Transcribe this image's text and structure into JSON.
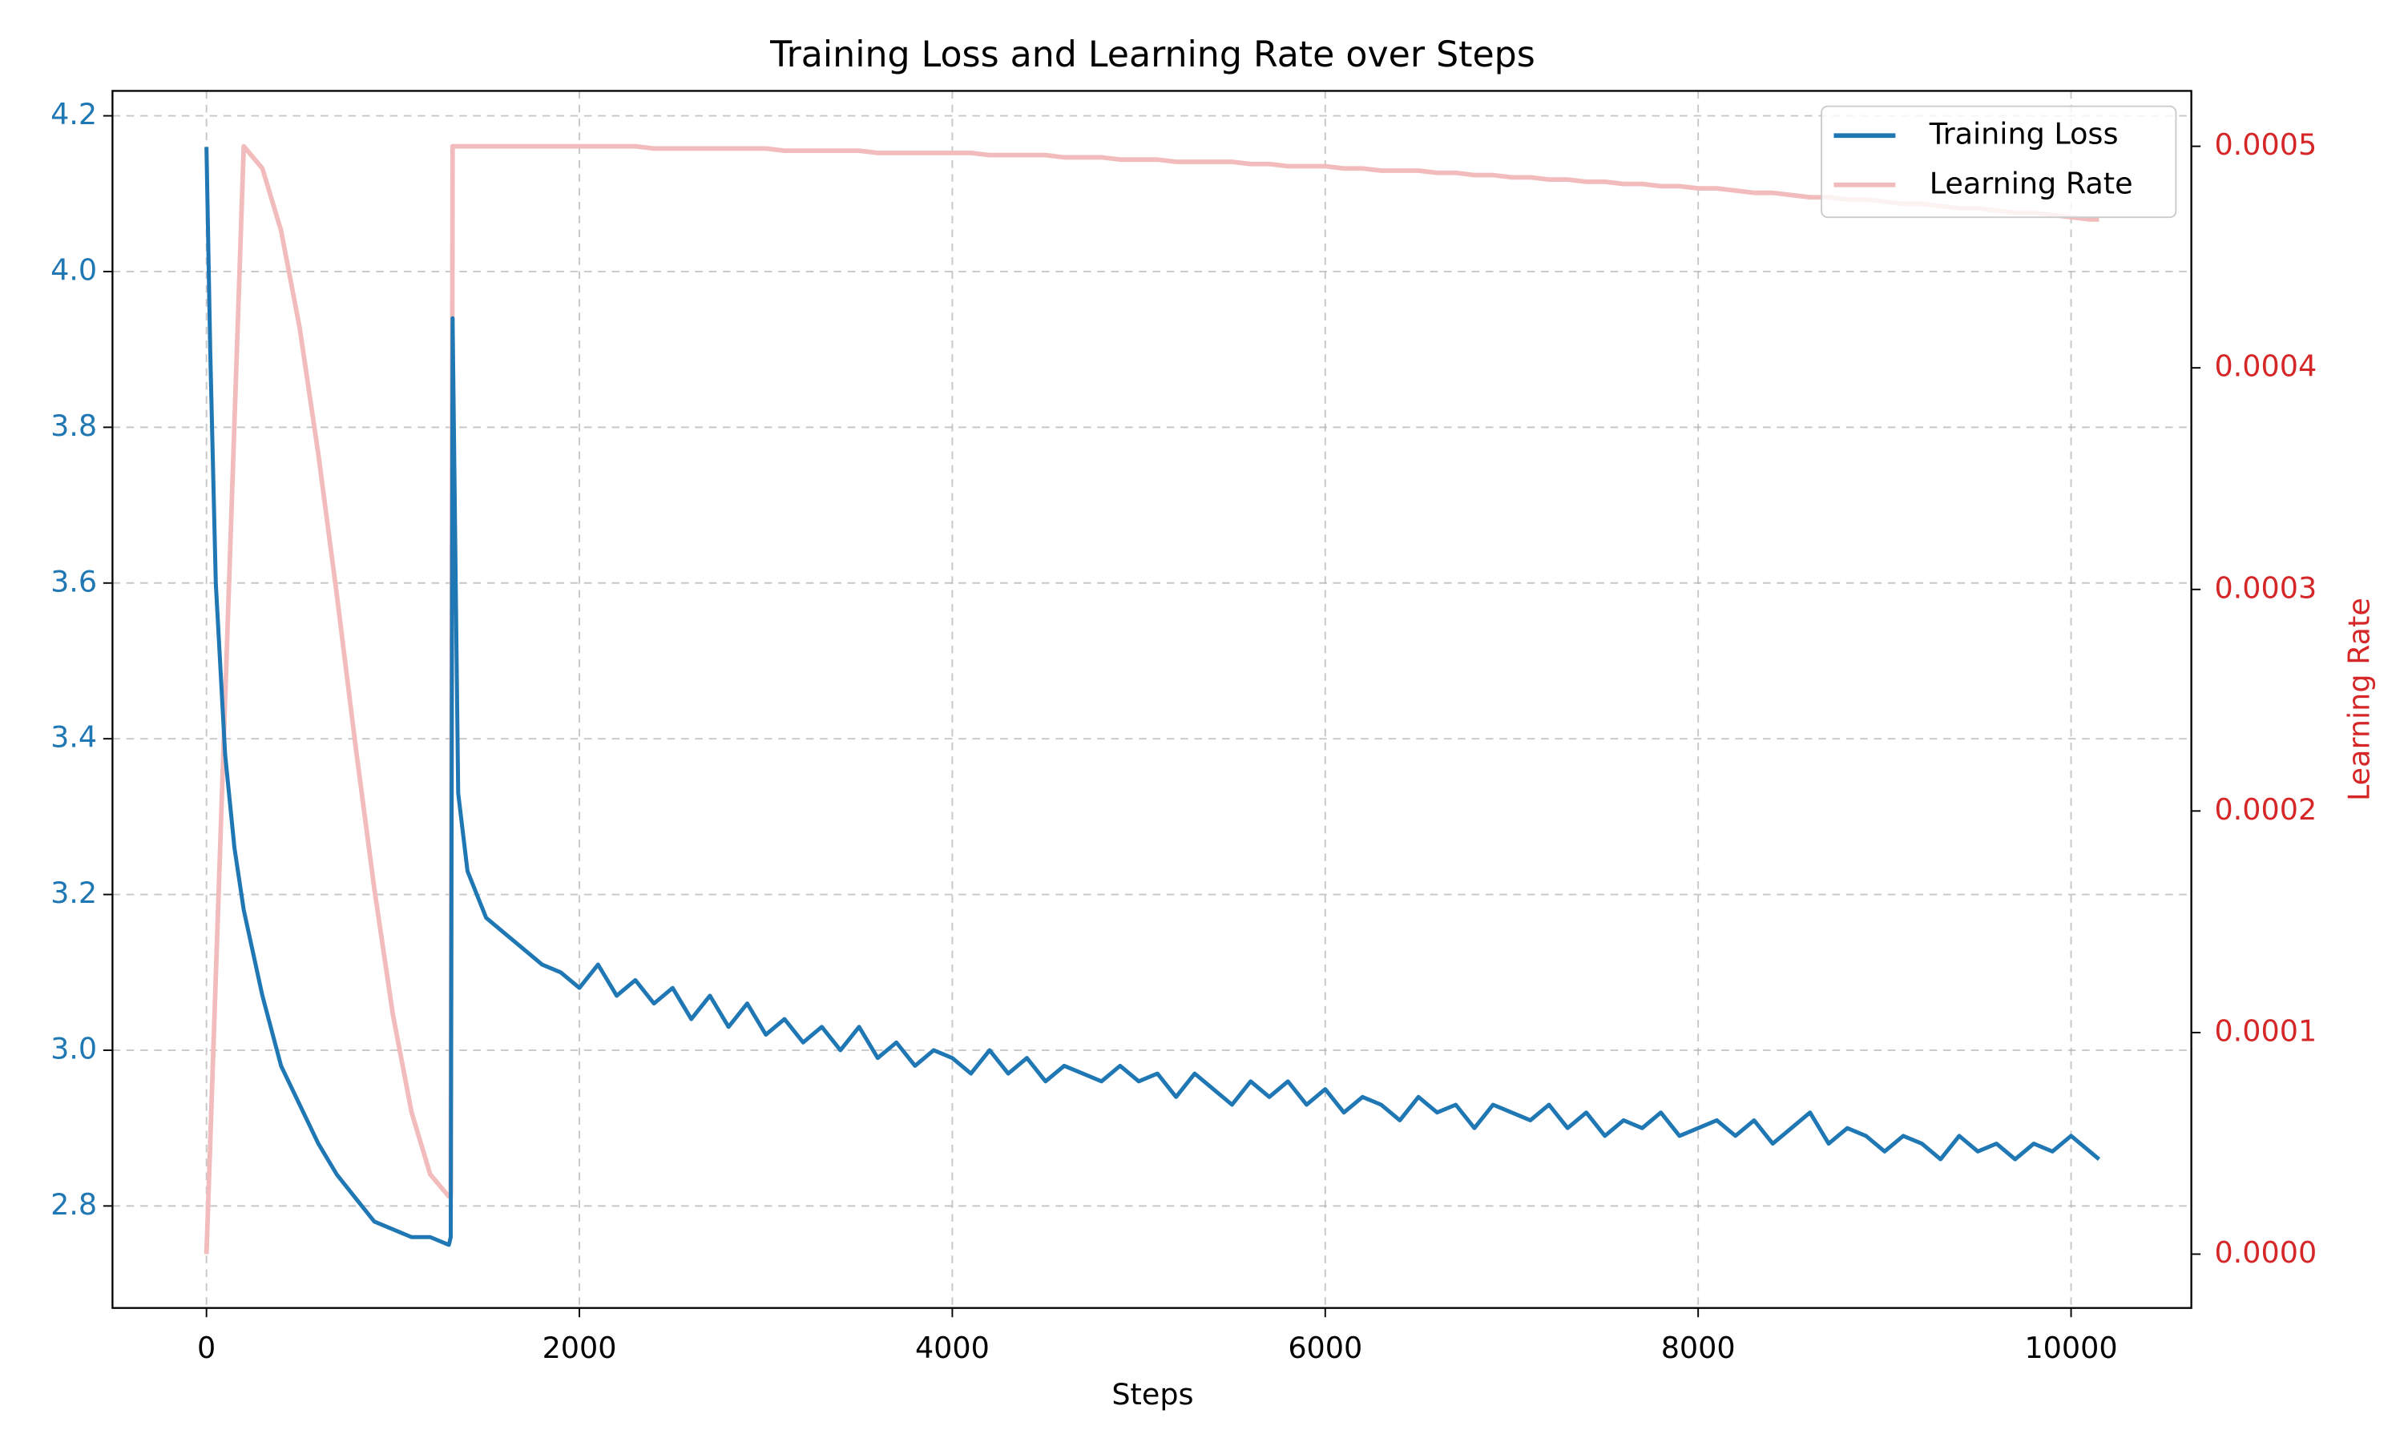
{
  "chart_data": {
    "type": "line",
    "title": "Training Loss and Learning Rate over Steps",
    "x_label": "Steps",
    "y2_label": "Learning Rate",
    "x": [
      0,
      20,
      50,
      100,
      150,
      200,
      300,
      400,
      500,
      600,
      700,
      800,
      900,
      1000,
      1100,
      1200,
      1300,
      1310,
      1320,
      1350,
      1400,
      1500,
      1600,
      1700,
      1800,
      1900,
      2000,
      2100,
      2200,
      2300,
      2400,
      2500,
      2600,
      2700,
      2800,
      2900,
      3000,
      3100,
      3200,
      3300,
      3400,
      3500,
      3600,
      3700,
      3800,
      3900,
      4000,
      4100,
      4200,
      4300,
      4400,
      4500,
      4600,
      4700,
      4800,
      4900,
      5000,
      5100,
      5200,
      5300,
      5400,
      5500,
      5600,
      5700,
      5800,
      5900,
      6000,
      6100,
      6200,
      6300,
      6400,
      6500,
      6600,
      6700,
      6800,
      6900,
      7000,
      7100,
      7200,
      7300,
      7400,
      7500,
      7600,
      7700,
      7800,
      7900,
      8000,
      8100,
      8200,
      8300,
      8400,
      8500,
      8600,
      8700,
      8800,
      8900,
      9000,
      9100,
      9200,
      9300,
      9400,
      9500,
      9600,
      9700,
      9800,
      9900,
      10000,
      10100,
      10150
    ],
    "series": [
      {
        "name": "Training Loss",
        "color": "#1f77b4",
        "axis": "y",
        "values": [
          4.16,
          3.9,
          3.6,
          3.38,
          3.26,
          3.18,
          3.07,
          2.98,
          2.93,
          2.88,
          2.84,
          2.81,
          2.78,
          2.77,
          2.76,
          2.76,
          2.75,
          2.76,
          3.94,
          3.33,
          3.23,
          3.17,
          3.15,
          3.13,
          3.11,
          3.1,
          3.08,
          3.11,
          3.07,
          3.09,
          3.06,
          3.08,
          3.04,
          3.07,
          3.03,
          3.06,
          3.02,
          3.04,
          3.01,
          3.03,
          3.0,
          3.03,
          2.99,
          3.01,
          2.98,
          3.0,
          2.99,
          2.97,
          3.0,
          2.97,
          2.99,
          2.96,
          2.98,
          2.97,
          2.96,
          2.98,
          2.96,
          2.97,
          2.94,
          2.97,
          2.95,
          2.93,
          2.96,
          2.94,
          2.96,
          2.93,
          2.95,
          2.92,
          2.94,
          2.93,
          2.91,
          2.94,
          2.92,
          2.93,
          2.9,
          2.93,
          2.92,
          2.91,
          2.93,
          2.9,
          2.92,
          2.89,
          2.91,
          2.9,
          2.92,
          2.89,
          2.9,
          2.91,
          2.89,
          2.91,
          2.88,
          2.9,
          2.92,
          2.88,
          2.9,
          2.89,
          2.87,
          2.89,
          2.88,
          2.86,
          2.89,
          2.87,
          2.88,
          2.86,
          2.88,
          2.87,
          2.89,
          2.87,
          2.86
        ]
      },
      {
        "name": "Learning Rate",
        "color": "#f2bcbc",
        "axis": "y2",
        "values": [
          0,
          5e-05,
          0.000125,
          0.00025,
          0.000375,
          0.0005,
          0.00049,
          0.000462,
          0.000418,
          0.000361,
          0.000297,
          0.000229,
          0.000165,
          0.000108,
          6.4e-05,
          3.6e-05,
          2.6e-05,
          2.6e-05,
          0.0005,
          0.0005,
          0.0005,
          0.0005,
          0.0005,
          0.0005,
          0.0005,
          0.0005,
          0.0005,
          0.0005,
          0.0005,
          0.0005,
          0.000499,
          0.000499,
          0.000499,
          0.000499,
          0.000499,
          0.000499,
          0.000499,
          0.000498,
          0.000498,
          0.000498,
          0.000498,
          0.000498,
          0.000497,
          0.000497,
          0.000497,
          0.000497,
          0.000497,
          0.000497,
          0.000496,
          0.000496,
          0.000496,
          0.000496,
          0.000495,
          0.000495,
          0.000495,
          0.000494,
          0.000494,
          0.000494,
          0.000493,
          0.000493,
          0.000493,
          0.000493,
          0.000492,
          0.000492,
          0.000491,
          0.000491,
          0.000491,
          0.00049,
          0.00049,
          0.000489,
          0.000489,
          0.000489,
          0.000488,
          0.000488,
          0.000487,
          0.000487,
          0.000486,
          0.000486,
          0.000485,
          0.000485,
          0.000484,
          0.000484,
          0.000483,
          0.000483,
          0.000482,
          0.000482,
          0.000481,
          0.000481,
          0.00048,
          0.000479,
          0.000479,
          0.000478,
          0.000477,
          0.000477,
          0.000476,
          0.000476,
          0.000475,
          0.000474,
          0.000474,
          0.000473,
          0.000472,
          0.000472,
          0.000471,
          0.00047,
          0.00047,
          0.000469,
          0.000468,
          0.000467,
          0.000467
        ]
      }
    ],
    "xlim": [
      -504,
      10645
    ],
    "ylim": [
      2.669,
      4.232
    ],
    "y2lim": [
      -2.43e-05,
      0.000525
    ],
    "xticks": [
      0,
      2000,
      4000,
      6000,
      8000,
      10000
    ],
    "yticks": [
      2.8,
      {
        "value": 3,
        "label": "3.0"
      },
      3.2,
      3.4,
      3.6,
      3.8,
      {
        "value": 4,
        "label": "4.0"
      },
      4.2
    ],
    "y2ticks": [
      {
        "value": 0,
        "label": "0.0000"
      },
      0.0001,
      0.0002,
      0.0003,
      0.0004,
      0.0005
    ],
    "y_tick_color": "#1f77b4",
    "y2_tick_color": "#d62728",
    "grid": true,
    "legend": "upper right"
  }
}
